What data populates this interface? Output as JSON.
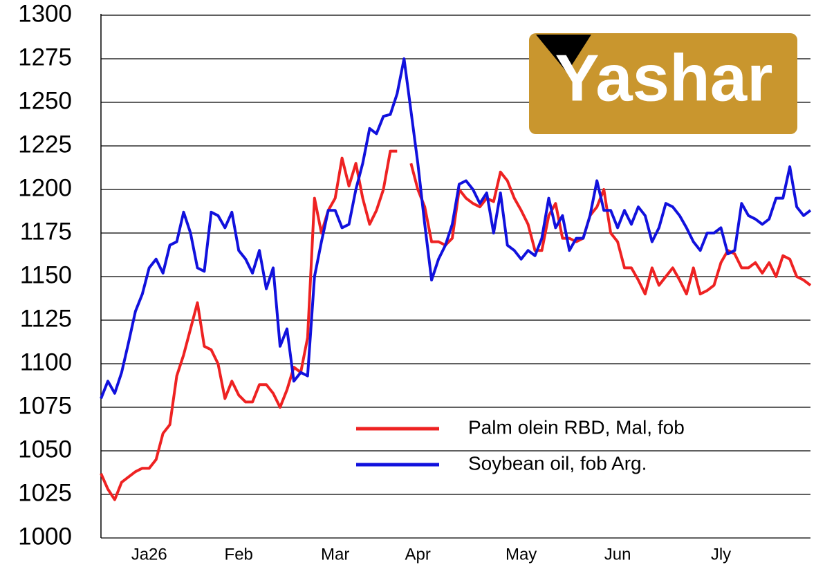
{
  "chart_data": {
    "type": "line",
    "logo": "Yashar",
    "categories": [
      null,
      null,
      null,
      null,
      null,
      null,
      null,
      "Ja26",
      null,
      null,
      null,
      null,
      null,
      null,
      null,
      null,
      null,
      null,
      null,
      null,
      "Feb",
      null,
      null,
      null,
      null,
      null,
      null,
      null,
      null,
      null,
      null,
      null,
      null,
      null,
      "Mar",
      null,
      null,
      null,
      null,
      null,
      null,
      null,
      null,
      null,
      null,
      null,
      "Apr",
      null,
      null,
      null,
      null,
      null,
      null,
      null,
      null,
      null,
      null,
      null,
      null,
      null,
      null,
      "May",
      null,
      null,
      null,
      null,
      null,
      null,
      null,
      null,
      null,
      null,
      null,
      null,
      null,
      "Jun",
      null,
      null,
      null,
      null,
      null,
      null,
      null,
      null,
      null,
      null,
      null,
      null,
      null,
      null,
      "Jly",
      null,
      null,
      null,
      null,
      null,
      null,
      null,
      null,
      null,
      null,
      null,
      null,
      null
    ],
    "series": [
      {
        "name": "Palm olein RBD, Mal, fob",
        "color": "#ee2222",
        "values": [
          1037,
          1028,
          1022,
          1032,
          1035,
          1038,
          1040,
          1040,
          1045,
          1060,
          1065,
          1093,
          1105,
          1120,
          1135,
          1110,
          1108,
          1100,
          1080,
          1090,
          1082,
          1078,
          1078,
          1088,
          1088,
          1083,
          1075,
          1085,
          1098,
          1095,
          1115,
          1195,
          1175,
          1188,
          1195,
          1218,
          1202,
          1215,
          1195,
          1180,
          1188,
          1200,
          1222,
          1222,
          null,
          1215,
          1200,
          1190,
          1170,
          1170,
          1168,
          1172,
          1200,
          1195,
          1192,
          1190,
          1195,
          1193,
          1210,
          1205,
          1195,
          1188,
          1180,
          1165,
          1165,
          1185,
          1192,
          1172,
          1172,
          1170,
          1172,
          1185,
          1190,
          1200,
          1175,
          1170,
          1155,
          1155,
          1148,
          1140,
          1155,
          1145,
          1150,
          1155,
          1148,
          1140,
          1155,
          1140,
          1142,
          1145,
          1158,
          1165,
          1163,
          1155,
          1155,
          1158,
          1152,
          1158,
          1150,
          1162,
          1160,
          1150,
          1148,
          1145
        ]
      },
      {
        "name": "Soybean oil, fob Arg.",
        "color": "#1111dd",
        "values": [
          1080,
          1090,
          1083,
          1095,
          1112,
          1130,
          1140,
          1155,
          1160,
          1152,
          1168,
          1170,
          1187,
          1175,
          1155,
          1153,
          1187,
          1185,
          1178,
          1187,
          1165,
          1160,
          1152,
          1165,
          1143,
          1155,
          1110,
          1120,
          1090,
          1095,
          1093,
          1150,
          1170,
          1188,
          1188,
          1178,
          1180,
          1200,
          1215,
          1235,
          1232,
          1242,
          1243,
          1255,
          1275,
          1245,
          1215,
          1180,
          1148,
          1160,
          1168,
          1180,
          1203,
          1205,
          1200,
          1192,
          1198,
          1175,
          1198,
          1168,
          1165,
          1160,
          1165,
          1162,
          1172,
          1195,
          1178,
          1185,
          1165,
          1172,
          1172,
          1185,
          1205,
          1188,
          1188,
          1178,
          1188,
          1180,
          1190,
          1185,
          1170,
          1178,
          1192,
          1190,
          1185,
          1178,
          1170,
          1165,
          1175,
          1175,
          1178,
          1163,
          1165,
          1192,
          1185,
          1183,
          1180,
          1183,
          1195,
          1195,
          1213,
          1190,
          1185,
          1188
        ]
      }
    ],
    "ylim": [
      1000,
      1300
    ],
    "yticks": [
      1000,
      1025,
      1050,
      1075,
      1100,
      1125,
      1150,
      1175,
      1200,
      1225,
      1250,
      1275,
      1300
    ],
    "grid": true,
    "legend": "lower center"
  }
}
